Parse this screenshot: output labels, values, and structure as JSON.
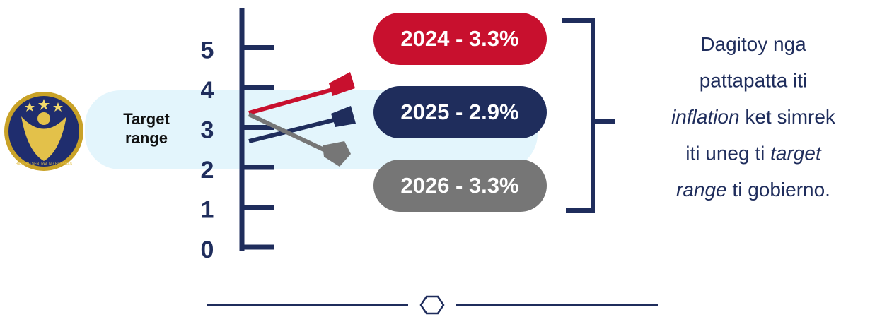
{
  "scale": {
    "ticks": [
      "0",
      "1",
      "2",
      "3",
      "4",
      "5"
    ],
    "target_label": [
      "Target",
      "range"
    ]
  },
  "logo": {
    "text": "BANGKO SENTRAL NG PILIPINAS"
  },
  "forecasts": [
    {
      "label": "2024 - 3.3%",
      "color": "#c8102e"
    },
    {
      "label": "2025 - 2.9%",
      "color": "#1f2d5c"
    },
    {
      "label": "2026 - 3.3%",
      "color": "#767676"
    }
  ],
  "note": {
    "lines": [
      [
        {
          "text": "Dagitoy nga",
          "italic": false
        }
      ],
      [
        {
          "text": "pattapatta iti",
          "italic": false
        }
      ],
      [
        {
          "text": "inflation",
          "italic": true
        },
        {
          "text": " ket simrek",
          "italic": false
        }
      ],
      [
        {
          "text": "iti uneg ti ",
          "italic": false
        },
        {
          "text": "target",
          "italic": true
        }
      ],
      [
        {
          "text": "range",
          "italic": true
        },
        {
          "text": " ti gobierno.",
          "italic": false
        }
      ]
    ]
  }
}
